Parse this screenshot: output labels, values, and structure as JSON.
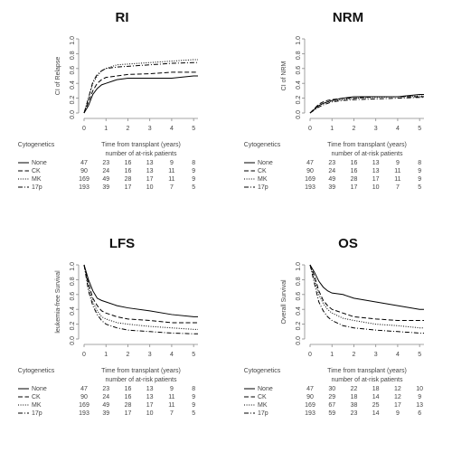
{
  "chart_data": [
    {
      "type": "line",
      "title": "RI",
      "ylabel": "CI of Relapse",
      "xlabel": "Time from transplant (years)",
      "table_header": "Cytogenetics",
      "table_title": "number of at-risk patients",
      "x": [
        0,
        0.2,
        0.4,
        0.6,
        0.8,
        1,
        1.5,
        2,
        3,
        4,
        5,
        5.2
      ],
      "xlim": [
        0,
        5.2
      ],
      "xticks": [
        0,
        1,
        2,
        3,
        4,
        5
      ],
      "ylim": [
        0,
        1
      ],
      "yticks": [
        {
          "value": 0,
          "label": "0.0"
        },
        0.2,
        0.4,
        0.6,
        0.8,
        {
          "value": 1,
          "label": "1.0"
        }
      ],
      "series": [
        {
          "name": "None",
          "color": "#000000",
          "dash": "solid",
          "values": [
            0,
            0.1,
            0.25,
            0.33,
            0.38,
            0.4,
            0.45,
            0.47,
            0.47,
            0.47,
            0.5,
            0.5
          ],
          "at_risk": [
            47,
            23,
            16,
            13,
            9,
            8
          ]
        },
        {
          "name": "CK",
          "color": "#000000",
          "dash": "dashed",
          "values": [
            0,
            0.15,
            0.3,
            0.4,
            0.45,
            0.48,
            0.5,
            0.52,
            0.53,
            0.55,
            0.55,
            0.55
          ],
          "at_risk": [
            90,
            24,
            16,
            13,
            11,
            9
          ]
        },
        {
          "name": "MK",
          "color": "#000000",
          "dash": "dotted",
          "values": [
            0,
            0.2,
            0.4,
            0.5,
            0.57,
            0.6,
            0.65,
            0.66,
            0.68,
            0.7,
            0.72,
            0.72
          ],
          "at_risk": [
            169,
            49,
            28,
            17,
            11,
            9
          ]
        },
        {
          "name": "17p",
          "color": "#000000",
          "dash": "dashdot",
          "values": [
            0,
            0.2,
            0.42,
            0.52,
            0.57,
            0.6,
            0.62,
            0.63,
            0.65,
            0.67,
            0.68,
            0.68
          ],
          "at_risk": [
            193,
            39,
            17,
            10,
            7,
            5
          ]
        }
      ]
    },
    {
      "type": "line",
      "title": "NRM",
      "ylabel": "CI of NRM",
      "xlabel": "Time from transplant (years)",
      "table_header": "Cytogenetics",
      "table_title": "number of at-risk patients",
      "x": [
        0,
        0.2,
        0.4,
        0.6,
        0.8,
        1,
        1.5,
        2,
        3,
        4,
        5,
        5.2
      ],
      "xlim": [
        0,
        5.2
      ],
      "xticks": [
        0,
        1,
        2,
        3,
        4,
        5
      ],
      "ylim": [
        0,
        1
      ],
      "yticks": [
        {
          "value": 0,
          "label": "0.0"
        },
        0.2,
        0.4,
        0.6,
        0.8,
        {
          "value": 1,
          "label": "1.0"
        }
      ],
      "series": [
        {
          "name": "None",
          "color": "#000000",
          "dash": "solid",
          "values": [
            0,
            0.05,
            0.1,
            0.13,
            0.15,
            0.17,
            0.2,
            0.22,
            0.22,
            0.22,
            0.25,
            0.25
          ],
          "at_risk": [
            47,
            23,
            16,
            13,
            9,
            8
          ]
        },
        {
          "name": "CK",
          "color": "#000000",
          "dash": "dashed",
          "values": [
            0,
            0.06,
            0.12,
            0.15,
            0.17,
            0.18,
            0.2,
            0.2,
            0.22,
            0.22,
            0.22,
            0.22
          ],
          "at_risk": [
            90,
            24,
            16,
            13,
            11,
            9
          ]
        },
        {
          "name": "MK",
          "color": "#000000",
          "dash": "dotted",
          "values": [
            0,
            0.05,
            0.1,
            0.13,
            0.15,
            0.16,
            0.18,
            0.2,
            0.21,
            0.22,
            0.23,
            0.23
          ],
          "at_risk": [
            169,
            49,
            28,
            17,
            11,
            9
          ]
        },
        {
          "name": "17p",
          "color": "#000000",
          "dash": "dashdot",
          "values": [
            0,
            0.04,
            0.08,
            0.11,
            0.13,
            0.15,
            0.17,
            0.18,
            0.19,
            0.2,
            0.21,
            0.21
          ],
          "at_risk": [
            193,
            39,
            17,
            10,
            7,
            5
          ]
        }
      ]
    },
    {
      "type": "line",
      "title": "LFS",
      "ylabel": "leukemia-free Survival",
      "xlabel": "Time from transplant (years)",
      "table_header": "Cytogenetics",
      "table_title": "number of at-risk patients",
      "x": [
        0,
        0.2,
        0.4,
        0.6,
        0.8,
        1,
        1.5,
        2,
        3,
        4,
        5,
        5.2
      ],
      "xlim": [
        0,
        5.2
      ],
      "xticks": [
        0,
        1,
        2,
        3,
        4,
        5
      ],
      "ylim": [
        0,
        1
      ],
      "yticks": [
        {
          "value": 0,
          "label": "0.0"
        },
        0.2,
        0.4,
        0.6,
        0.8,
        {
          "value": 1,
          "label": "1.0"
        }
      ],
      "series": [
        {
          "name": "None",
          "color": "#000000",
          "dash": "solid",
          "values": [
            1,
            0.8,
            0.65,
            0.55,
            0.52,
            0.5,
            0.45,
            0.42,
            0.38,
            0.33,
            0.3,
            0.3
          ],
          "at_risk": [
            47,
            23,
            16,
            13,
            9,
            8
          ]
        },
        {
          "name": "CK",
          "color": "#000000",
          "dash": "dashed",
          "values": [
            1,
            0.75,
            0.55,
            0.45,
            0.38,
            0.35,
            0.3,
            0.27,
            0.25,
            0.22,
            0.22,
            0.22
          ],
          "at_risk": [
            90,
            24,
            16,
            13,
            11,
            9
          ]
        },
        {
          "name": "MK",
          "color": "#000000",
          "dash": "dotted",
          "values": [
            1,
            0.7,
            0.5,
            0.38,
            0.3,
            0.27,
            0.22,
            0.2,
            0.17,
            0.15,
            0.13,
            0.13
          ],
          "at_risk": [
            169,
            49,
            28,
            17,
            11,
            9
          ]
        },
        {
          "name": "17p",
          "color": "#000000",
          "dash": "dashdot",
          "values": [
            1,
            0.65,
            0.45,
            0.33,
            0.25,
            0.2,
            0.15,
            0.12,
            0.1,
            0.08,
            0.07,
            0.07
          ],
          "at_risk": [
            193,
            39,
            17,
            10,
            7,
            5
          ]
        }
      ]
    },
    {
      "type": "line",
      "title": "OS",
      "ylabel": "Overall Survival",
      "xlabel": "Time from transplant (years)",
      "table_header": "Cytogenetics",
      "table_title": "number of at-risk patients",
      "x": [
        0,
        0.2,
        0.4,
        0.6,
        0.8,
        1,
        1.5,
        2,
        3,
        4,
        5,
        5.2
      ],
      "xlim": [
        0,
        5.2
      ],
      "xticks": [
        0,
        1,
        2,
        3,
        4,
        5
      ],
      "ylim": [
        0,
        1
      ],
      "yticks": [
        {
          "value": 0,
          "label": "0.0"
        },
        0.2,
        0.4,
        0.6,
        0.8,
        {
          "value": 1,
          "label": "1.0"
        }
      ],
      "series": [
        {
          "name": "None",
          "color": "#000000",
          "dash": "solid",
          "values": [
            1,
            0.9,
            0.78,
            0.7,
            0.65,
            0.62,
            0.6,
            0.55,
            0.5,
            0.45,
            0.4,
            0.4
          ],
          "at_risk": [
            47,
            30,
            22,
            18,
            12,
            10
          ]
        },
        {
          "name": "CK",
          "color": "#000000",
          "dash": "dashed",
          "values": [
            1,
            0.85,
            0.65,
            0.52,
            0.45,
            0.4,
            0.35,
            0.3,
            0.27,
            0.25,
            0.25,
            0.25
          ],
          "at_risk": [
            90,
            29,
            18,
            14,
            12,
            9
          ]
        },
        {
          "name": "MK",
          "color": "#000000",
          "dash": "dotted",
          "values": [
            1,
            0.8,
            0.6,
            0.48,
            0.4,
            0.35,
            0.28,
            0.25,
            0.2,
            0.18,
            0.15,
            0.15
          ],
          "at_risk": [
            169,
            67,
            38,
            25,
            17,
            13
          ]
        },
        {
          "name": "17p",
          "color": "#000000",
          "dash": "dashdot",
          "values": [
            1,
            0.75,
            0.5,
            0.38,
            0.3,
            0.25,
            0.18,
            0.15,
            0.12,
            0.1,
            0.08,
            0.08
          ],
          "at_risk": [
            193,
            59,
            23,
            14,
            9,
            6
          ]
        }
      ]
    }
  ]
}
